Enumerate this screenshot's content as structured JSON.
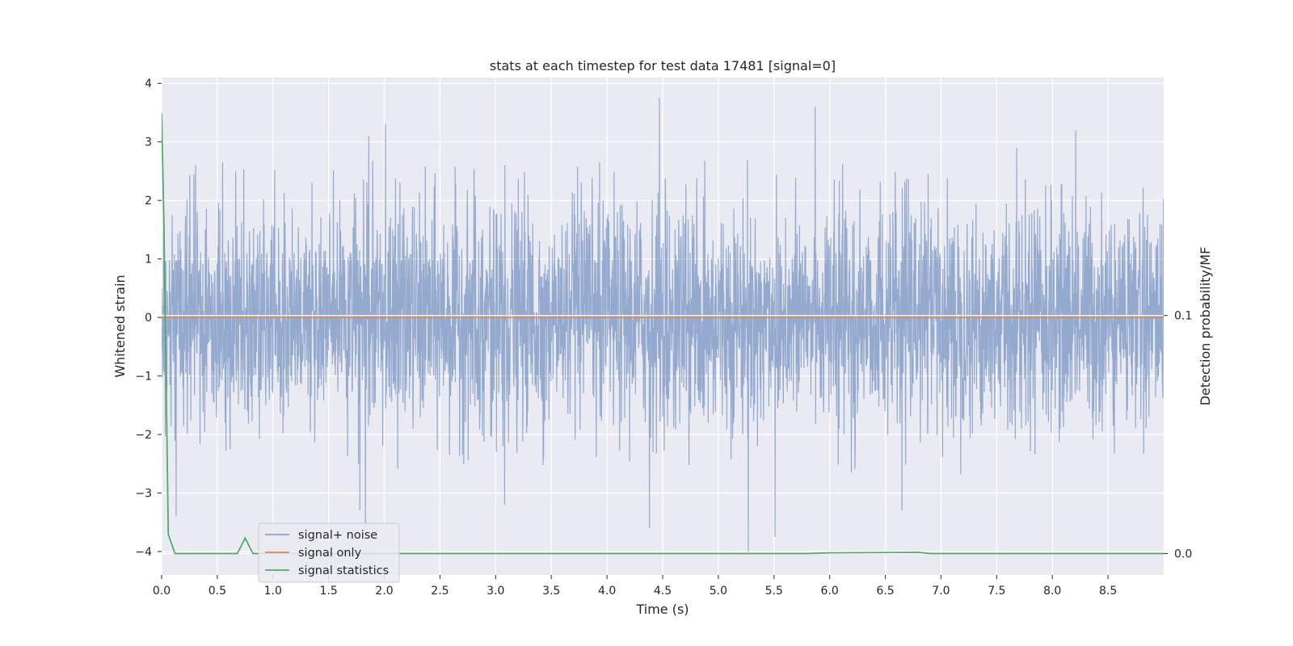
{
  "chart_data": {
    "type": "line",
    "title": "stats at each timestep for test data 17481 [signal=0]",
    "xlabel": "Time (s)",
    "ylabel": "Whitened strain",
    "y2label": "Detection probability/MF",
    "xlim": [
      0.0,
      9.0
    ],
    "ylim": [
      -4.4,
      4.1
    ],
    "y2lim": [
      -0.009,
      0.2
    ],
    "x_ticks": [
      "0.0",
      "0.5",
      "1.0",
      "1.5",
      "2.0",
      "2.5",
      "3.0",
      "3.5",
      "4.0",
      "4.5",
      "5.0",
      "5.5",
      "6.0",
      "6.5",
      "7.0",
      "7.5",
      "8.0",
      "8.5"
    ],
    "y_ticks": [
      "4",
      "3",
      "2",
      "1",
      "0",
      "−1",
      "−2",
      "−3",
      "−4"
    ],
    "y2_ticks": [
      "0.1",
      "0.0"
    ],
    "grid": true,
    "legend_position": "lower-left",
    "background": "#eaeaf2",
    "series": [
      {
        "name": "signal+ noise",
        "color": "#4c72b0",
        "axis": "left",
        "style": "dense noise, roughly Gaussian, |amplitude| mostly within 2.5",
        "peaks": [
          [
            4.47,
            3.75
          ],
          [
            5.87,
            3.6
          ],
          [
            2.01,
            3.3
          ],
          [
            8.21,
            3.2
          ],
          [
            1.86,
            3.1
          ],
          [
            7.68,
            2.9
          ],
          [
            5.27,
            -4.0
          ],
          [
            5.51,
            -3.75
          ],
          [
            1.83,
            -3.6
          ],
          [
            4.38,
            -3.6
          ],
          [
            0.13,
            -3.4
          ],
          [
            1.78,
            -3.3
          ],
          [
            6.65,
            -3.3
          ],
          [
            3.08,
            -3.2
          ]
        ]
      },
      {
        "name": "signal only",
        "color": "#dd8452",
        "axis": "left",
        "x": [
          0.0,
          9.0
        ],
        "y": [
          0.0,
          0.0
        ]
      },
      {
        "name": "signal statistics",
        "color": "#55a868",
        "axis": "right",
        "x": [
          0.0,
          0.02,
          0.06,
          0.12,
          0.2,
          0.68,
          0.75,
          0.82,
          0.9,
          1.5,
          5.8,
          6.0,
          6.8,
          6.9,
          9.0
        ],
        "y": [
          0.185,
          0.14,
          0.008,
          0.0,
          0.0,
          0.0,
          0.0065,
          0.0,
          0.0,
          0.0,
          0.0,
          0.0003,
          0.0005,
          0.0,
          0.0
        ]
      }
    ]
  }
}
